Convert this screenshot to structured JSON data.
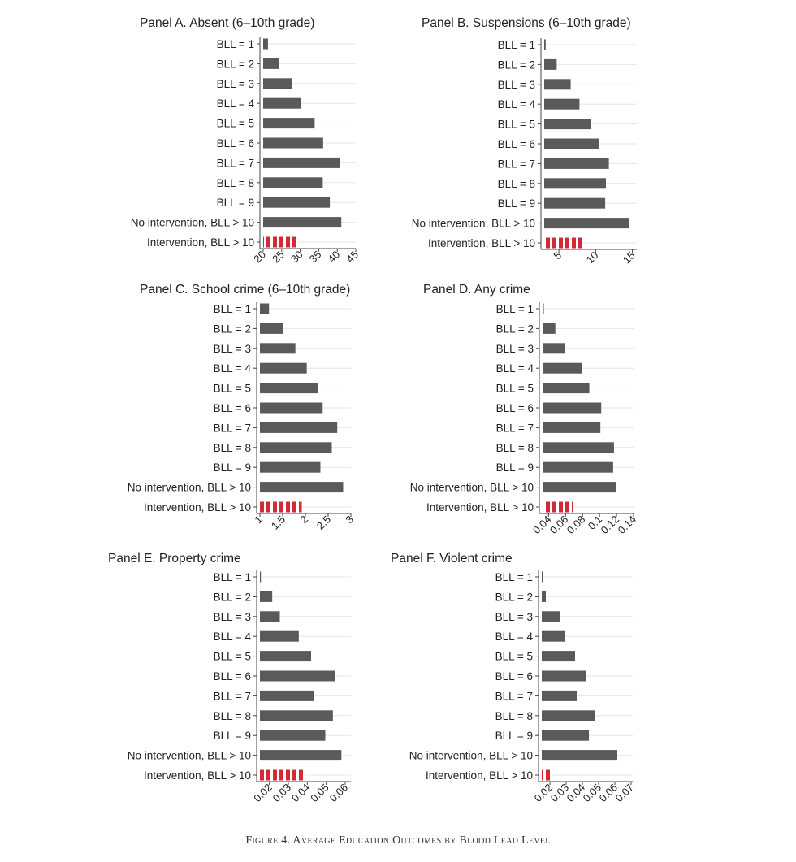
{
  "figure_caption": "Figure 4. Average Education Outcomes by Blood Lead Level",
  "colors": {
    "bar": "#5a5a5a",
    "intervention": "#d42a36",
    "grid": "#e6e6e6",
    "axis": "#444444"
  },
  "chart_data": [
    {
      "type": "bar",
      "orientation": "horizontal",
      "title": "Panel A. Absent (6–10th grade)",
      "categories": [
        "BLL = 1",
        "BLL = 2",
        "BLL = 3",
        "BLL = 4",
        "BLL = 5",
        "BLL = 6",
        "BLL = 7",
        "BLL = 8",
        "BLL = 9",
        "No intervention, BLL > 10",
        "Intervention, BLL > 10"
      ],
      "values": [
        21.3,
        24.3,
        27.9,
        30.2,
        33.9,
        36.2,
        40.8,
        36.1,
        38.0,
        41.1,
        29.3
      ],
      "xlim": [
        20,
        45
      ],
      "xticks": [
        20,
        25,
        30,
        35,
        40,
        45
      ],
      "xtick_labels": [
        "20",
        "25",
        "30",
        "35",
        "40",
        "45"
      ],
      "highlight_last": true
    },
    {
      "type": "bar",
      "orientation": "horizontal",
      "title": "Panel B. Suspensions (6–10th grade)",
      "categories": [
        "BLL = 1",
        "BLL = 2",
        "BLL = 3",
        "BLL = 4",
        "BLL = 5",
        "BLL = 6",
        "BLL = 7",
        "BLL = 8",
        "BLL = 9",
        "No intervention, BLL > 10",
        "Intervention, BLL > 10"
      ],
      "values": [
        3.2,
        4.7,
        6.6,
        7.8,
        9.3,
        10.4,
        11.8,
        11.4,
        11.3,
        14.6,
        8.2
      ],
      "xlim": [
        3,
        15.6
      ],
      "xticks": [
        5,
        10,
        15
      ],
      "xtick_labels": [
        "5",
        "10",
        "15"
      ],
      "highlight_last": true
    },
    {
      "type": "bar",
      "orientation": "horizontal",
      "title": "Panel C. School crime (6–10th grade)",
      "categories": [
        "BLL = 1",
        "BLL = 2",
        "BLL = 3",
        "BLL = 4",
        "BLL = 5",
        "BLL = 6",
        "BLL = 7",
        "BLL = 8",
        "BLL = 9",
        "No intervention, BLL > 10",
        "Intervention, BLL > 10"
      ],
      "values": [
        1.2,
        1.5,
        1.78,
        2.03,
        2.28,
        2.38,
        2.7,
        2.58,
        2.33,
        2.83,
        1.92
      ],
      "xlim": [
        1,
        3
      ],
      "xticks": [
        1,
        1.5,
        2,
        2.5,
        3
      ],
      "xtick_labels": [
        "1",
        "1.5",
        "2",
        "2.5",
        "3"
      ],
      "highlight_last": true
    },
    {
      "type": "bar",
      "orientation": "horizontal",
      "title": "Panel D. Any crime",
      "categories": [
        "BLL = 1",
        "BLL = 2",
        "BLL = 3",
        "BLL = 4",
        "BLL = 5",
        "BLL = 6",
        "BLL = 7",
        "BLL = 8",
        "BLL = 9",
        "No intervention, BLL > 10",
        "Intervention, BLL > 10"
      ],
      "values": [
        0.0345,
        0.048,
        0.059,
        0.079,
        0.088,
        0.102,
        0.101,
        0.117,
        0.116,
        0.119,
        0.069
      ],
      "xlim": [
        0.033,
        0.14
      ],
      "xticks": [
        0.04,
        0.06,
        0.08,
        0.1,
        0.12,
        0.14
      ],
      "xtick_labels": [
        "0.04",
        "0.06",
        "0.08",
        "0.1",
        "0.12",
        "0.14"
      ],
      "highlight_last": true
    },
    {
      "type": "bar",
      "orientation": "horizontal",
      "title": "Panel E. Property crime",
      "categories": [
        "BLL = 1",
        "BLL = 2",
        "BLL = 3",
        "BLL = 4",
        "BLL = 5",
        "BLL = 6",
        "BLL = 7",
        "BLL = 8",
        "BLL = 9",
        "No intervention, BLL > 10",
        "Intervention, BLL > 10"
      ],
      "values": [
        0.0155,
        0.0215,
        0.0255,
        0.0355,
        0.042,
        0.0545,
        0.0435,
        0.0535,
        0.0495,
        0.058,
        0.0385
      ],
      "xlim": [
        0.015,
        0.063
      ],
      "xticks": [
        0.02,
        0.03,
        0.04,
        0.05,
        0.06
      ],
      "xtick_labels": [
        "0.02",
        "0.03",
        "0.04",
        "0.05",
        "0.06"
      ],
      "highlight_last": true
    },
    {
      "type": "bar",
      "orientation": "horizontal",
      "title": "Panel F. Violent crime",
      "categories": [
        "BLL = 1",
        "BLL = 2",
        "BLL = 3",
        "BLL = 4",
        "BLL = 5",
        "BLL = 6",
        "BLL = 7",
        "BLL = 8",
        "BLL = 9",
        "No intervention, BLL > 10",
        "Intervention, BLL > 10"
      ],
      "values": [
        0.0153,
        0.0175,
        0.0265,
        0.0295,
        0.0355,
        0.0425,
        0.0365,
        0.0475,
        0.044,
        0.0615,
        0.0215
      ],
      "xlim": [
        0.015,
        0.071
      ],
      "xticks": [
        0.02,
        0.03,
        0.04,
        0.05,
        0.06,
        0.07
      ],
      "xtick_labels": [
        "0.02",
        "0.03",
        "0.04",
        "0.05",
        "0.06",
        "0.07"
      ],
      "highlight_last": true
    }
  ]
}
